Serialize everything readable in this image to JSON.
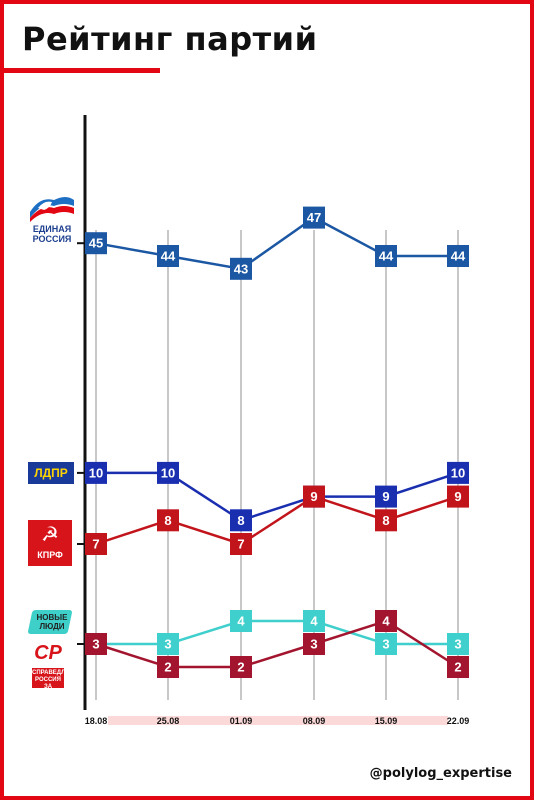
{
  "header": {
    "title": "Рейтинг партий"
  },
  "footer": {
    "handle": "@polylog_expertise"
  },
  "colors": {
    "frame": "#e30613",
    "er": "#1b57a3",
    "ldpr": "#1a2fb0",
    "kprf": "#c1141b",
    "new_people": "#3fcfcc",
    "sr": "#a3152e",
    "gridline": "#c8c8c8",
    "axis": "#111111",
    "date_band": "#fbd9d9"
  },
  "logos": {
    "er": {
      "icon": "bear-flag-icon",
      "text": "ЕДИНАЯ РОССИЯ"
    },
    "ldpr": {
      "text": "ЛДПР"
    },
    "kprf": {
      "icon": "hammer-sickle-icon",
      "text": "КПРФ"
    },
    "new_people": {
      "text": "НОВЫЕ ЛЮДИ"
    },
    "sr": {
      "big": "СР",
      "text": "СПРАВЕДЛИВАЯ РОССИЯ ЗА ПРАВДУ"
    }
  },
  "chart_data": {
    "type": "line",
    "title": "Рейтинг партий",
    "x": [
      "18.08",
      "25.08",
      "01.09",
      "08.09",
      "15.09",
      "22.09"
    ],
    "axis_break": true,
    "grid": "vertical",
    "series": [
      {
        "key": "er",
        "values": [
          45,
          44,
          43,
          47,
          44,
          44
        ]
      },
      {
        "key": "ldpr",
        "values": [
          10,
          10,
          8,
          9,
          9,
          10
        ]
      },
      {
        "key": "kprf",
        "values": [
          7,
          8,
          7,
          9,
          8,
          9
        ]
      },
      {
        "key": "new_people",
        "values": [
          3,
          3,
          4,
          4,
          3,
          3
        ]
      },
      {
        "key": "sr",
        "values": [
          3,
          2,
          2,
          3,
          4,
          2
        ]
      }
    ]
  }
}
